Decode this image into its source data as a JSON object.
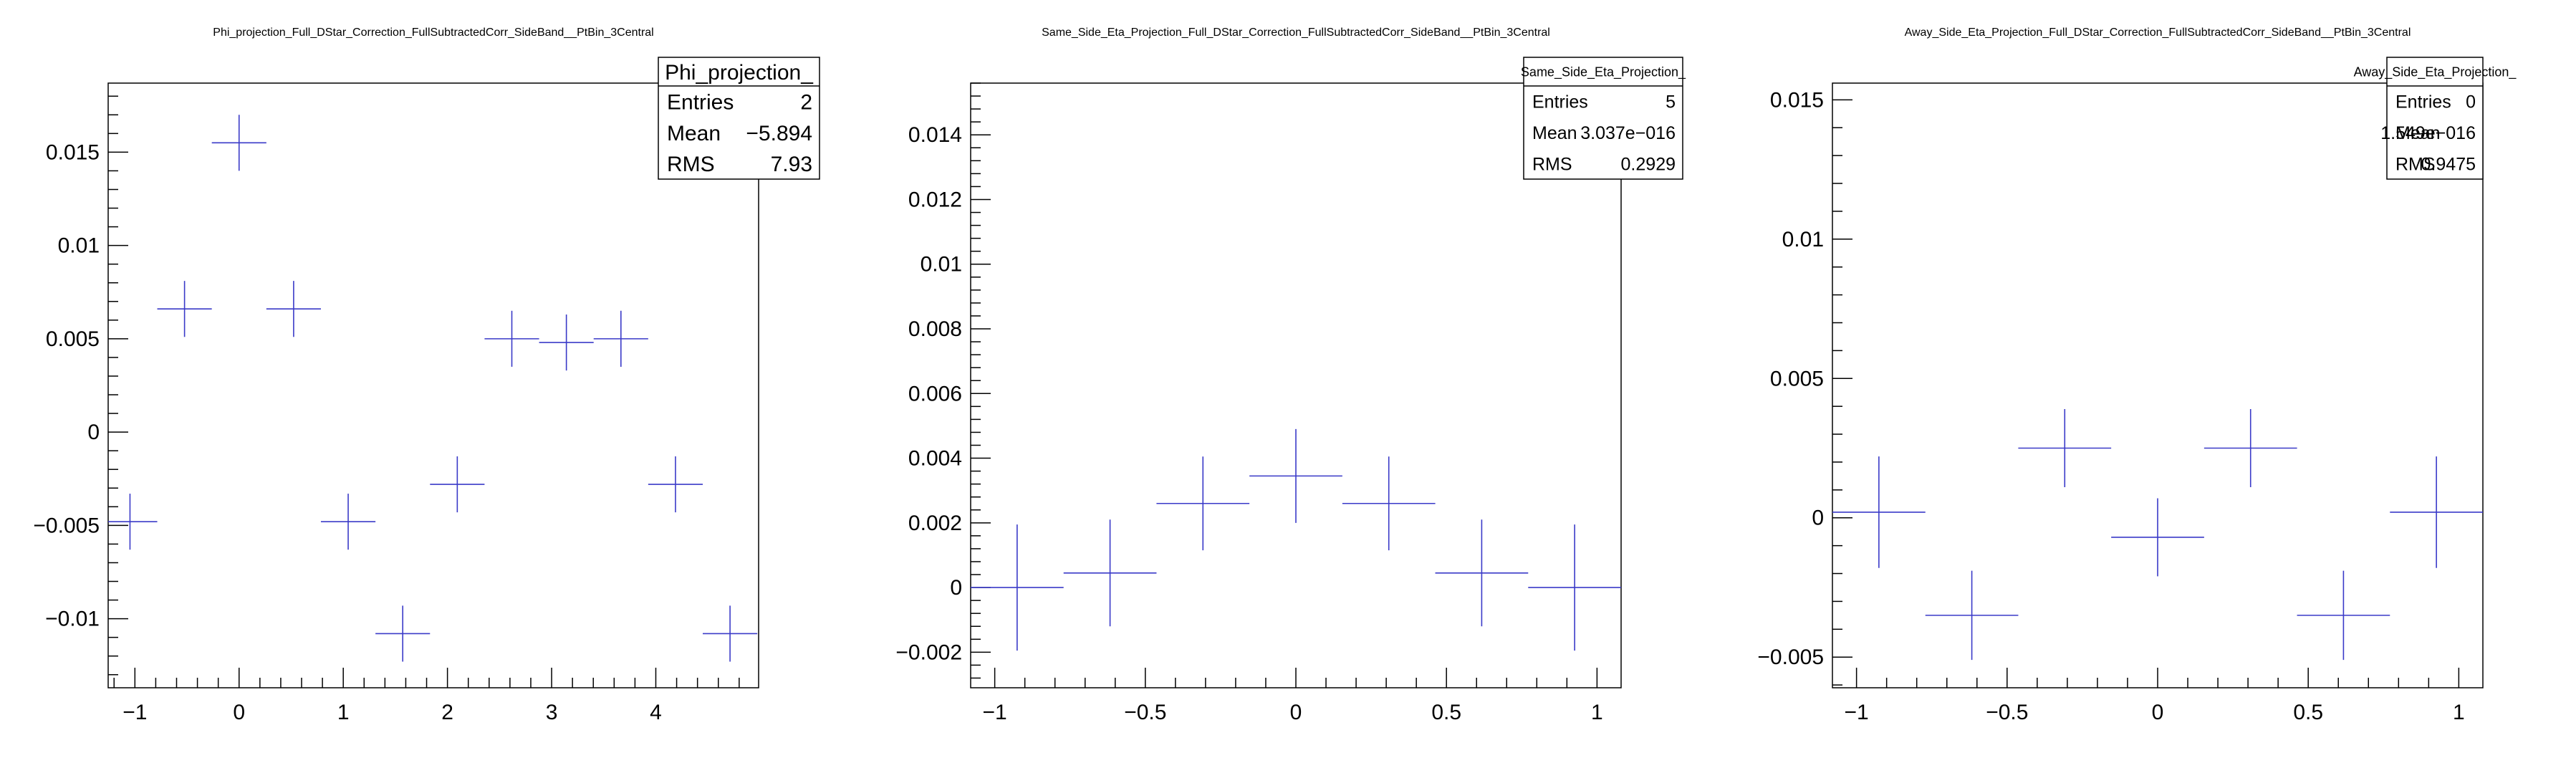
{
  "colors": {
    "marker": "#3a3ac8",
    "axis": "#000000",
    "frame": "#000000",
    "background": "#ffffff"
  },
  "chart_data": [
    {
      "type": "scatter",
      "style": "error-bars",
      "title": "Phi_projection_Full_DStar_Correction_FullSubtractedCorr_SideBand__PtBin_3Central",
      "xlim": [
        -1.2566,
        4.9868
      ],
      "ylim": [
        -0.0137,
        0.0187
      ],
      "x_ticks": [
        -1,
        0,
        1,
        2,
        3,
        4
      ],
      "x_tick_labels": [
        "−1",
        "0",
        "1",
        "2",
        "3",
        "4"
      ],
      "y_ticks": [
        -0.01,
        -0.005,
        0,
        0.005,
        0.01,
        0.015
      ],
      "y_tick_labels": [
        "−0.01",
        "−0.005",
        "0",
        "0.005",
        "0.01",
        "0.015"
      ],
      "bin_width": 0.5236,
      "points": [
        {
          "x": -1.0472,
          "y": -0.0048,
          "ey": 0.0015
        },
        {
          "x": -0.5236,
          "y": 0.0066,
          "ey": 0.0015
        },
        {
          "x": 0.0,
          "y": 0.0155,
          "ey": 0.0015
        },
        {
          "x": 0.5236,
          "y": 0.0066,
          "ey": 0.0015
        },
        {
          "x": 1.0472,
          "y": -0.0048,
          "ey": 0.0015
        },
        {
          "x": 1.5708,
          "y": -0.0108,
          "ey": 0.0015
        },
        {
          "x": 2.0944,
          "y": -0.0028,
          "ey": 0.0015
        },
        {
          "x": 2.618,
          "y": 0.005,
          "ey": 0.0015
        },
        {
          "x": 3.1416,
          "y": 0.0048,
          "ey": 0.0015
        },
        {
          "x": 3.6652,
          "y": 0.005,
          "ey": 0.0015
        },
        {
          "x": 4.1888,
          "y": -0.0028,
          "ey": 0.0015
        },
        {
          "x": 4.7124,
          "y": -0.0108,
          "ey": 0.0015
        }
      ],
      "stats": {
        "name": "Phi_projection_",
        "rows": [
          {
            "label": "Entries",
            "value": "2"
          },
          {
            "label": "Mean",
            "value": "−5.894"
          },
          {
            "label": "RMS",
            "value": "7.93"
          }
        ]
      }
    },
    {
      "type": "scatter",
      "style": "error-bars",
      "title": "Same_Side_Eta_Projection_Full_DStar_Correction_FullSubtractedCorr_SideBand__PtBin_3Central",
      "xlim": [
        -1.08,
        1.08
      ],
      "ylim": [
        -0.0031,
        0.0156
      ],
      "x_ticks": [
        -1,
        -0.5,
        0,
        0.5,
        1
      ],
      "x_tick_labels": [
        "−1",
        "−0.5",
        "0",
        "0.5",
        "1"
      ],
      "y_ticks": [
        -0.002,
        0,
        0.002,
        0.004,
        0.006,
        0.008,
        0.01,
        0.012,
        0.014
      ],
      "y_tick_labels": [
        "−0.002",
        "0",
        "0.002",
        "0.004",
        "0.006",
        "0.008",
        "0.01",
        "0.012",
        "0.014"
      ],
      "bin_width": 0.3086,
      "points": [
        {
          "x": -0.9257,
          "y": 0.0,
          "ey": 0.00195
        },
        {
          "x": -0.6171,
          "y": 0.00045,
          "ey": 0.00165
        },
        {
          "x": -0.3086,
          "y": 0.0026,
          "ey": 0.00145
        },
        {
          "x": 0.0,
          "y": 0.00345,
          "ey": 0.00145
        },
        {
          "x": 0.3086,
          "y": 0.0026,
          "ey": 0.00145
        },
        {
          "x": 0.6171,
          "y": 0.00045,
          "ey": 0.00165
        },
        {
          "x": 0.9257,
          "y": 0.0,
          "ey": 0.00195
        }
      ],
      "stats": {
        "name": "Same_Side_Eta_Projection_",
        "rows": [
          {
            "label": "Entries",
            "value": "5"
          },
          {
            "label": "Mean",
            "value": "3.037e−016"
          },
          {
            "label": "RMS",
            "value": "0.2929"
          }
        ]
      }
    },
    {
      "type": "scatter",
      "style": "error-bars",
      "title": "Away_Side_Eta_Projection_Full_DStar_Correction_FullSubtractedCorr_SideBand__PtBin_3Central",
      "xlim": [
        -1.08,
        1.08
      ],
      "ylim": [
        -0.0061,
        0.0156
      ],
      "x_ticks": [
        -1,
        -0.5,
        0,
        0.5,
        1
      ],
      "x_tick_labels": [
        "−1",
        "−0.5",
        "0",
        "0.5",
        "1"
      ],
      "y_ticks": [
        -0.005,
        0,
        0.005,
        0.01,
        0.015
      ],
      "y_tick_labels": [
        "−0.005",
        "0",
        "0.005",
        "0.01",
        "0.015"
      ],
      "bin_width": 0.3086,
      "points": [
        {
          "x": -0.9257,
          "y": 0.0002,
          "ey": 0.002
        },
        {
          "x": -0.6171,
          "y": -0.0035,
          "ey": 0.0016
        },
        {
          "x": -0.3086,
          "y": 0.0025,
          "ey": 0.0014
        },
        {
          "x": 0.0,
          "y": -0.0007,
          "ey": 0.0014
        },
        {
          "x": 0.3086,
          "y": 0.0025,
          "ey": 0.0014
        },
        {
          "x": 0.6171,
          "y": -0.0035,
          "ey": 0.0016
        },
        {
          "x": 0.9257,
          "y": 0.0002,
          "ey": 0.002
        }
      ],
      "stats": {
        "name": "Away_Side_Eta_Projection_",
        "rows": [
          {
            "label": "Entries",
            "value": "0"
          },
          {
            "label": "Mean",
            "value": "1.549e−016"
          },
          {
            "label": "RMS",
            "value": "0.9475"
          }
        ]
      }
    }
  ]
}
